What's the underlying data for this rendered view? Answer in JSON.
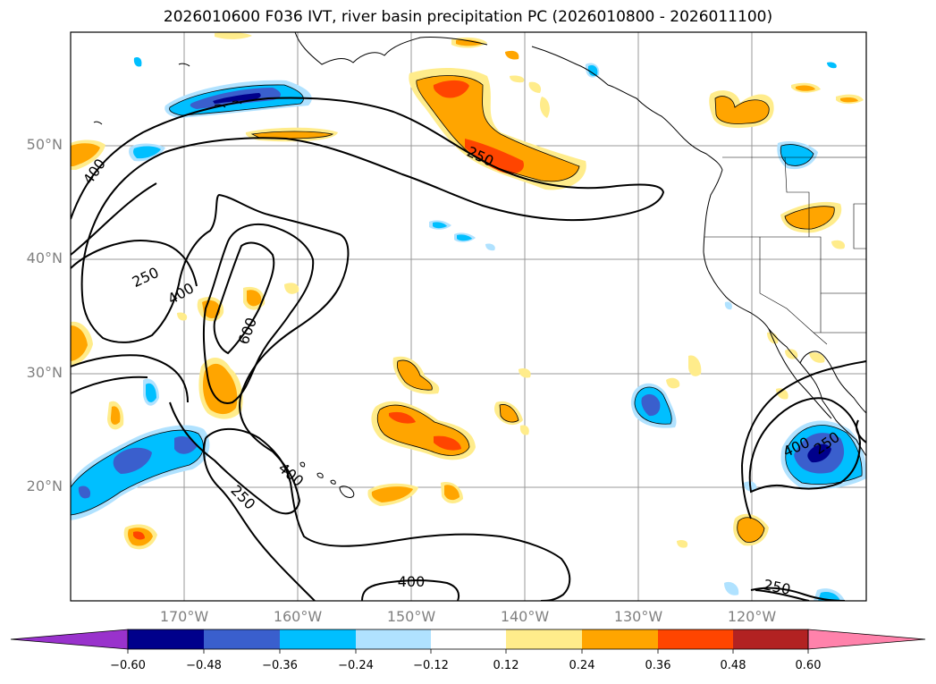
{
  "title": "2026010600 F036 IVT, river basin precipitation PC (2026010800 - 2026011100)",
  "map": {
    "projection": "PlateCarree",
    "extent": {
      "lon_min": -180,
      "lon_max": -110,
      "lat_min": 10,
      "lat_max": 60
    },
    "gridline_color": "#999999",
    "lat_labels": [
      "50°N",
      "40°N",
      "30°N",
      "20°N"
    ],
    "lon_labels": [
      "170°W",
      "160°W",
      "150°W",
      "140°W",
      "130°W",
      "120°W"
    ]
  },
  "ivt_contours": {
    "levels": [
      250,
      400,
      600
    ],
    "labels": [
      "400",
      "250",
      "250",
      "400",
      "600",
      "400",
      "250",
      "400",
      "250",
      "400",
      "250",
      "250"
    ]
  },
  "precip_pc": {
    "colorbar": {
      "ticks": [
        "−0.60",
        "−0.48",
        "−0.36",
        "−0.24",
        "−0.12",
        "0.12",
        "0.24",
        "0.36",
        "0.48",
        "0.60"
      ],
      "colors": [
        "#9932CC",
        "#00008B",
        "#3A5FCD",
        "#00BFFF",
        "#B0E2FF",
        "#FFFFFF",
        "#FFEC8B",
        "#FFA500",
        "#FF4500",
        "#B22222",
        "#FF82AB"
      ],
      "extend": "both"
    }
  }
}
